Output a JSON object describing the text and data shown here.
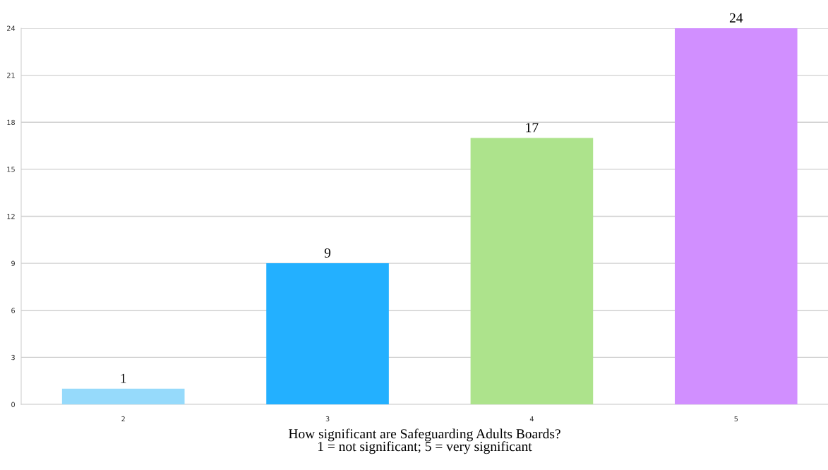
{
  "chart_data": {
    "type": "bar",
    "xlabel": "How significant are Safeguarding Adults Boards?\n1 = not significant; 5 = very significant",
    "categories": [
      "2",
      "3",
      "4",
      "5"
    ],
    "values": [
      1,
      9,
      17,
      24
    ],
    "colors": [
      "#96dafb",
      "#23b0ff",
      "#ade38c",
      "#d18fff"
    ],
    "ylim": [
      0,
      24
    ],
    "yticks": [
      0,
      3,
      6,
      9,
      12,
      15,
      18,
      21,
      24
    ],
    "grid": "y",
    "data_labels": true
  }
}
